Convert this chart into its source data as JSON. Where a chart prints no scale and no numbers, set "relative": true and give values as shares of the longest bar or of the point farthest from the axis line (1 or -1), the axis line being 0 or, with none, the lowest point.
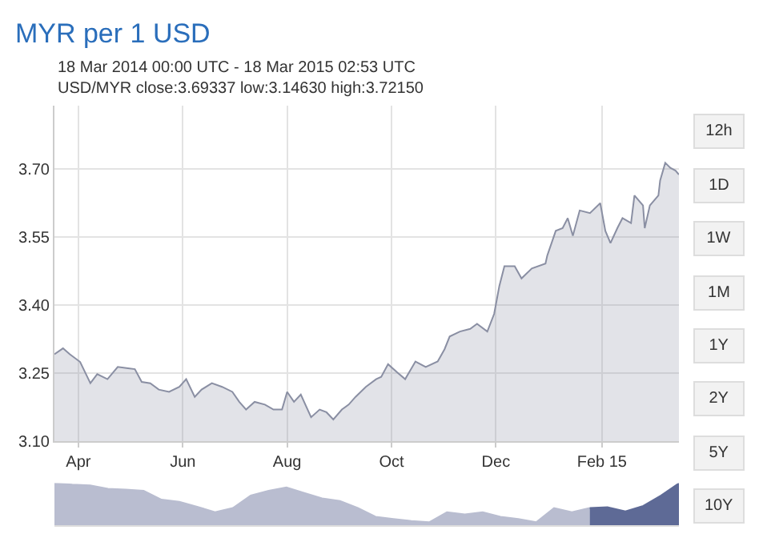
{
  "chart_data": [
    {
      "type": "area",
      "title": "MYR per 1 USD",
      "subtitle": "18 Mar 2014 00:00 UTC - 18 Mar 2015 02:53 UTC\nUSD/MYR close:3.69337 low:3.14630 high:3.72150",
      "annotations": [
        "12h",
        "1D",
        "1W",
        "1M",
        "1Y",
        "2Y",
        "5Y",
        "10Y"
      ],
      "series": [
        {
          "color": "#8a8fa3",
          "x": [
            "2014-03-18",
            "2014-03-23",
            "2014-03-27",
            "2014-04-02",
            "2014-04-08",
            "2014-04-12",
            "2014-04-18",
            "2014-04-24",
            "2014-04-30",
            "2014-05-04",
            "2014-05-08",
            "2014-05-13",
            "2014-05-18",
            "2014-05-24",
            "2014-05-30",
            "2014-06-03",
            "2014-06-08",
            "2014-06-12",
            "2014-06-18",
            "2014-06-24",
            "2014-06-30",
            "2014-07-04",
            "2014-07-08",
            "2014-07-13",
            "2014-07-19",
            "2014-07-24",
            "2014-07-29",
            "2014-08-01",
            "2014-08-05",
            "2014-08-09",
            "2014-08-15",
            "2014-08-20",
            "2014-08-24",
            "2014-08-28",
            "2014-09-02",
            "2014-09-06",
            "2014-09-10",
            "2014-09-16",
            "2014-09-22",
            "2014-09-25",
            "2014-09-29",
            "2014-10-04",
            "2014-10-09",
            "2014-10-15",
            "2014-10-21",
            "2014-10-28",
            "2014-11-01",
            "2014-11-04",
            "2014-11-10",
            "2014-11-16",
            "2014-11-20",
            "2014-11-26",
            "2014-11-30",
            "2014-12-03",
            "2014-12-06",
            "2014-12-12",
            "2014-12-16",
            "2014-12-22",
            "2014-12-30",
            "2014-12-31",
            "2015-01-05",
            "2015-01-09",
            "2015-01-12",
            "2015-01-15",
            "2015-01-19",
            "2015-01-25",
            "2015-01-31",
            "2015-02-03",
            "2015-02-06",
            "2015-02-10",
            "2015-02-13",
            "2015-02-18",
            "2015-02-20",
            "2015-02-25",
            "2015-02-26",
            "2015-03-01",
            "2015-03-06",
            "2015-03-07",
            "2015-03-10",
            "2015-03-13",
            "2015-03-16",
            "2015-03-18"
          ],
          "values": [
            3.292,
            3.305,
            3.292,
            3.275,
            3.228,
            3.248,
            3.237,
            3.264,
            3.261,
            3.259,
            3.231,
            3.228,
            3.214,
            3.209,
            3.22,
            3.237,
            3.198,
            3.214,
            3.228,
            3.22,
            3.209,
            3.187,
            3.17,
            3.187,
            3.181,
            3.17,
            3.17,
            3.209,
            3.187,
            3.203,
            3.153,
            3.17,
            3.164,
            3.148,
            3.17,
            3.181,
            3.198,
            3.22,
            3.237,
            3.242,
            3.27,
            3.253,
            3.237,
            3.276,
            3.264,
            3.276,
            3.303,
            3.331,
            3.342,
            3.348,
            3.359,
            3.342,
            3.381,
            3.442,
            3.486,
            3.486,
            3.459,
            3.481,
            3.492,
            3.509,
            3.564,
            3.57,
            3.592,
            3.553,
            3.609,
            3.603,
            3.625,
            3.564,
            3.537,
            3.57,
            3.592,
            3.581,
            3.642,
            3.62,
            3.57,
            3.62,
            3.642,
            3.675,
            3.714,
            3.703,
            3.697,
            3.688
          ]
        }
      ],
      "xlim": [
        "2014-03-18",
        "2015-03-18"
      ],
      "xticks": [
        {
          "value": "2014-04-01",
          "label": "Apr"
        },
        {
          "value": "2014-06-01",
          "label": "Jun"
        },
        {
          "value": "2014-08-01",
          "label": "Aug"
        },
        {
          "value": "2014-10-01",
          "label": "Oct"
        },
        {
          "value": "2014-12-01",
          "label": "Dec"
        },
        {
          "value": "2015-02-01",
          "label": "Feb 15"
        }
      ],
      "ylim": [
        3.1,
        3.84
      ],
      "yticks": [
        {
          "value": 3.1,
          "label": "3.10"
        },
        {
          "value": 3.25,
          "label": "3.25"
        },
        {
          "value": 3.4,
          "label": "3.40"
        },
        {
          "value": 3.55,
          "label": "3.55"
        },
        {
          "value": 3.7,
          "label": "3.70"
        }
      ],
      "grid": true
    },
    {
      "type": "area",
      "relative": true,
      "tick_labels": false,
      "categories": [
        null,
        null,
        null,
        null,
        null,
        null,
        null,
        null,
        null,
        null,
        null,
        null,
        null,
        null,
        null,
        null,
        null,
        null,
        null,
        null,
        null,
        null,
        null,
        null,
        null,
        null,
        null,
        null,
        null,
        null,
        null,
        null,
        null,
        null,
        null,
        null
      ],
      "series": [
        {
          "color": "#b9bdd0",
          "values": [
            1,
            0.97,
            0.95,
            0.87,
            0.85,
            0.82,
            0.61,
            0.56,
            0.44,
            0.31,
            0.41,
            0.71,
            0.82,
            0.9,
            0.77,
            0.64,
            0.58,
            0.41,
            0.2,
            0.15,
            0.1,
            0.07,
            0.31,
            0.26,
            0.31,
            0.2,
            0.15,
            0.07,
            0.41,
            0.31,
            0.41,
            null,
            null,
            null,
            null,
            null
          ]
        },
        {
          "color": "#5e6a96",
          "values": [
            null,
            null,
            null,
            null,
            null,
            null,
            null,
            null,
            null,
            null,
            null,
            null,
            null,
            null,
            null,
            null,
            null,
            null,
            null,
            null,
            null,
            null,
            null,
            null,
            null,
            null,
            null,
            null,
            null,
            null,
            0.41,
            0.43,
            0.33,
            0.46,
            0.71,
            1
          ]
        }
      ]
    }
  ]
}
